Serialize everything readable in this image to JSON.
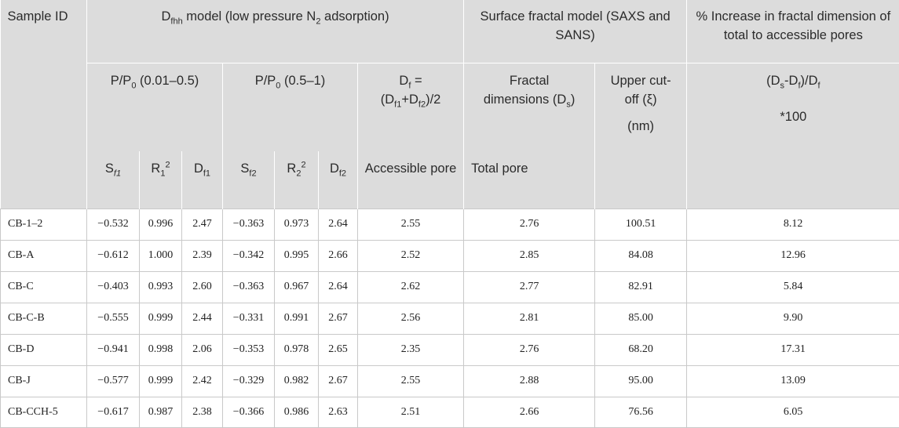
{
  "header": {
    "sample_id": "Sample ID",
    "dfhh_group": {
      "prefix": "D",
      "sub": "fhh",
      "mid": " model (low pressure N",
      "sub2": "2",
      "suffix": " adsorption)"
    },
    "surface_group": "Surface fractal model (SAXS and SANS)",
    "increase_group": "% Increase in fractal dimension of total to accessible pores",
    "range1": {
      "prefix": "P/P",
      "sub": "0",
      "suffix": " (0.01–0.5)"
    },
    "range2": {
      "prefix": "P/P",
      "sub": "0",
      "suffix": " (0.5–1)"
    },
    "df_formula": {
      "l1_prefix": "D",
      "l1_sub": "f",
      "l1_suffix": " =",
      "l2_a": "(D",
      "l2_sub1": "f1",
      "l2_b": "+D",
      "l2_sub2": "f2",
      "l2_c": ")/2"
    },
    "fractal_dims": {
      "line1": "Fractal",
      "line2_prefix": "dimensions (D",
      "line2_sub": "s",
      "line2_suffix": ")"
    },
    "upper_cutoff": {
      "line1": "Upper cut-",
      "line2": "off (ξ)",
      "line3": "(nm)"
    },
    "increase_formula": {
      "a": "(D",
      "sub1": "s",
      "b": "-D",
      "sub2": "f",
      "c": ")/D",
      "sub3": "f",
      "d": "*100"
    },
    "sub_cols": {
      "sf1": {
        "prefix": "S",
        "sub": "f1"
      },
      "r1": {
        "prefix": "R",
        "sub": "1",
        "sup": "2"
      },
      "df1": {
        "prefix": "D",
        "sub": "f1"
      },
      "sf2": {
        "prefix": "S",
        "sub": "f2"
      },
      "r2": {
        "prefix": "R",
        "sub": "2",
        "sup": "2"
      },
      "df2": {
        "prefix": "D",
        "sub": "f2"
      },
      "accessible": "Accessible pore",
      "total": "Total pore"
    }
  },
  "rows": [
    {
      "id": "CB-1–2",
      "sf1": "−0.532",
      "r1": "0.996",
      "df1": "2.47",
      "sf2": "−0.363",
      "r2": "0.973",
      "df2": "2.64",
      "df": "2.55",
      "ds": "2.76",
      "xi": "100.51",
      "inc": "8.12"
    },
    {
      "id": "CB-A",
      "sf1": "−0.612",
      "r1": "1.000",
      "df1": "2.39",
      "sf2": "−0.342",
      "r2": "0.995",
      "df2": "2.66",
      "df": "2.52",
      "ds": "2.85",
      "xi": "84.08",
      "inc": "12.96"
    },
    {
      "id": "CB-C",
      "sf1": "−0.403",
      "r1": "0.993",
      "df1": "2.60",
      "sf2": "−0.363",
      "r2": "0.967",
      "df2": "2.64",
      "df": "2.62",
      "ds": "2.77",
      "xi": "82.91",
      "inc": "5.84"
    },
    {
      "id": "CB-C-B",
      "sf1": "−0.555",
      "r1": "0.999",
      "df1": "2.44",
      "sf2": "−0.331",
      "r2": "0.991",
      "df2": "2.67",
      "df": "2.56",
      "ds": "2.81",
      "xi": "85.00",
      "inc": "9.90"
    },
    {
      "id": "CB-D",
      "sf1": "−0.941",
      "r1": "0.998",
      "df1": "2.06",
      "sf2": "−0.353",
      "r2": "0.978",
      "df2": "2.65",
      "df": "2.35",
      "ds": "2.76",
      "xi": "68.20",
      "inc": "17.31"
    },
    {
      "id": "CB-J",
      "sf1": "−0.577",
      "r1": "0.999",
      "df1": "2.42",
      "sf2": "−0.329",
      "r2": "0.982",
      "df2": "2.67",
      "df": "2.55",
      "ds": "2.88",
      "xi": "95.00",
      "inc": "13.09"
    },
    {
      "id": "CB-CCH-5",
      "sf1": "−0.617",
      "r1": "0.987",
      "df1": "2.38",
      "sf2": "−0.366",
      "r2": "0.986",
      "df2": "2.63",
      "df": "2.51",
      "ds": "2.66",
      "xi": "76.56",
      "inc": "6.05"
    }
  ]
}
